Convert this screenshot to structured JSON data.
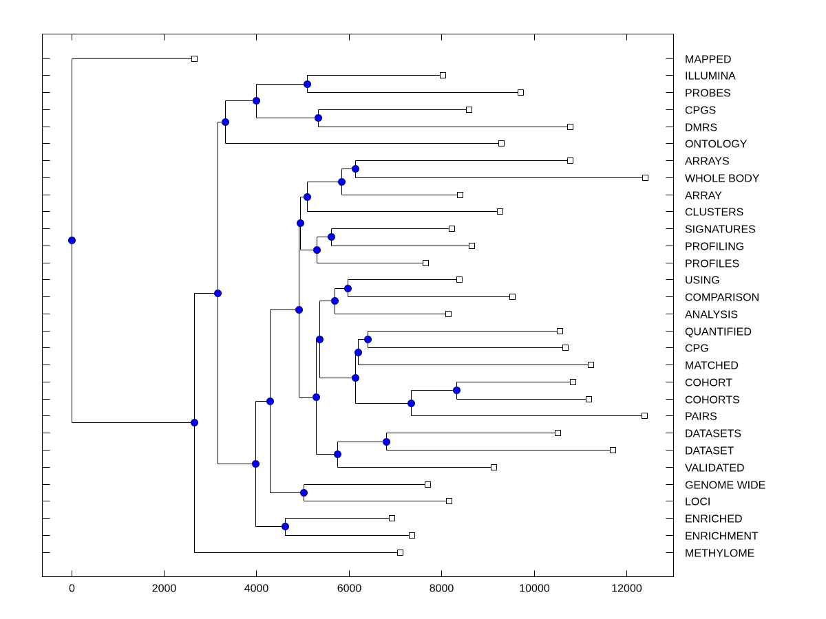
{
  "chart_data": {
    "type": "dendrogram",
    "title": "",
    "xlabel": "",
    "ylabel": "",
    "xlim": [
      -625,
      13020
    ],
    "xticks": [
      0,
      2000,
      4000,
      6000,
      8000,
      10000,
      12000
    ],
    "xtick_labels": [
      "0",
      "2000",
      "4000",
      "6000",
      "8000",
      "10000",
      "12000"
    ],
    "grid": false,
    "legend": "none",
    "colors": {
      "node_fill": "#0000ff",
      "node_stroke": "#000080",
      "leaf_fill": "#ffffff",
      "line": "#000000"
    },
    "leaves": [
      {
        "label": "MAPPED",
        "value": 2662
      },
      {
        "label": "ILLUMINA",
        "value": 8030
      },
      {
        "label": "PROBES",
        "value": 9710
      },
      {
        "label": "CPGS",
        "value": 8595
      },
      {
        "label": "DMRS",
        "value": 10781
      },
      {
        "label": "ONTOLOGY",
        "value": 9294
      },
      {
        "label": "ARRAYS",
        "value": 10781
      },
      {
        "label": "WHOLE BODY",
        "value": 12401
      },
      {
        "label": "ARRAY",
        "value": 8401
      },
      {
        "label": "CLUSTERS",
        "value": 9264
      },
      {
        "label": "SIGNATURES",
        "value": 8223
      },
      {
        "label": "PROFILING",
        "value": 8654
      },
      {
        "label": "PROFILES",
        "value": 7658
      },
      {
        "label": "USING",
        "value": 8387
      },
      {
        "label": "COMPARISON",
        "value": 9532
      },
      {
        "label": "ANALYSIS",
        "value": 8149
      },
      {
        "label": "QUANTIFIED",
        "value": 10558
      },
      {
        "label": "CPG",
        "value": 10677
      },
      {
        "label": "MATCHED",
        "value": 11227
      },
      {
        "label": "COHORT",
        "value": 10840
      },
      {
        "label": "COHORTS",
        "value": 11182
      },
      {
        "label": "PAIRS",
        "value": 12387
      },
      {
        "label": "DATASETS",
        "value": 10513
      },
      {
        "label": "DATASET",
        "value": 11703
      },
      {
        "label": "VALIDATED",
        "value": 9130
      },
      {
        "label": "GENOME WIDE",
        "value": 7703
      },
      {
        "label": "LOCI",
        "value": 8164
      },
      {
        "label": "ENRICHED",
        "value": 6929
      },
      {
        "label": "ENRICHMENT",
        "value": 7361
      },
      {
        "label": "METHYLOME",
        "value": 7108
      }
    ],
    "nodes": [
      {
        "id": "root",
        "value": 0,
        "children": [
          "L0",
          "Na"
        ]
      },
      {
        "id": "Na",
        "value": 2662,
        "children": [
          "Nb",
          "L29"
        ]
      },
      {
        "id": "Nb",
        "value": 3167,
        "children": [
          "Nc",
          "Nd"
        ]
      },
      {
        "id": "Nc",
        "value": 3331,
        "children": [
          "Ne",
          "L5"
        ]
      },
      {
        "id": "Ne",
        "value": 4000,
        "children": [
          "Nf",
          "Ng"
        ]
      },
      {
        "id": "Nf",
        "value": 5100,
        "children": [
          "L1",
          "L2"
        ]
      },
      {
        "id": "Ng",
        "value": 5338,
        "children": [
          "L3",
          "L4"
        ]
      },
      {
        "id": "Nd",
        "value": 3985,
        "children": [
          "Nh",
          "Ni"
        ]
      },
      {
        "id": "Nh",
        "value": 4297,
        "children": [
          "Nj",
          "Nk"
        ]
      },
      {
        "id": "Nj",
        "value": 4922,
        "children": [
          "Nl",
          "Nm"
        ]
      },
      {
        "id": "Nl",
        "value": 4952,
        "children": [
          "Nn",
          "No"
        ]
      },
      {
        "id": "Nn",
        "value": 5100,
        "children": [
          "Np",
          "L9"
        ]
      },
      {
        "id": "Np",
        "value": 5844,
        "children": [
          "Nq",
          "L8"
        ]
      },
      {
        "id": "Nq",
        "value": 6141,
        "children": [
          "L6",
          "L7"
        ]
      },
      {
        "id": "No",
        "value": 5309,
        "children": [
          "Nr",
          "L12"
        ]
      },
      {
        "id": "Nr",
        "value": 5621,
        "children": [
          "L10",
          "L11"
        ]
      },
      {
        "id": "Nm",
        "value": 5294,
        "children": [
          "Ns",
          "Nt"
        ]
      },
      {
        "id": "Ns",
        "value": 5368,
        "children": [
          "Nu",
          "Nv"
        ]
      },
      {
        "id": "Nu",
        "value": 5695,
        "children": [
          "Nw",
          "L15"
        ]
      },
      {
        "id": "Nw",
        "value": 5978,
        "children": [
          "L13",
          "L14"
        ]
      },
      {
        "id": "Nv",
        "value": 6141,
        "children": [
          "Nx",
          "Ny"
        ]
      },
      {
        "id": "Nx",
        "value": 6201,
        "children": [
          "Nz",
          "L18"
        ]
      },
      {
        "id": "Nz",
        "value": 6409,
        "children": [
          "L16",
          "L17"
        ]
      },
      {
        "id": "Ny",
        "value": 7346,
        "children": [
          "Naa",
          "L21"
        ]
      },
      {
        "id": "Naa",
        "value": 8327,
        "children": [
          "L19",
          "L20"
        ]
      },
      {
        "id": "Nt",
        "value": 5755,
        "children": [
          "Nbb",
          "L24"
        ]
      },
      {
        "id": "Nbb",
        "value": 6810,
        "children": [
          "L22",
          "L23"
        ]
      },
      {
        "id": "Nk",
        "value": 5026,
        "children": [
          "L25",
          "L26"
        ]
      },
      {
        "id": "Ni",
        "value": 4625,
        "children": [
          "L27",
          "L28"
        ]
      }
    ]
  }
}
